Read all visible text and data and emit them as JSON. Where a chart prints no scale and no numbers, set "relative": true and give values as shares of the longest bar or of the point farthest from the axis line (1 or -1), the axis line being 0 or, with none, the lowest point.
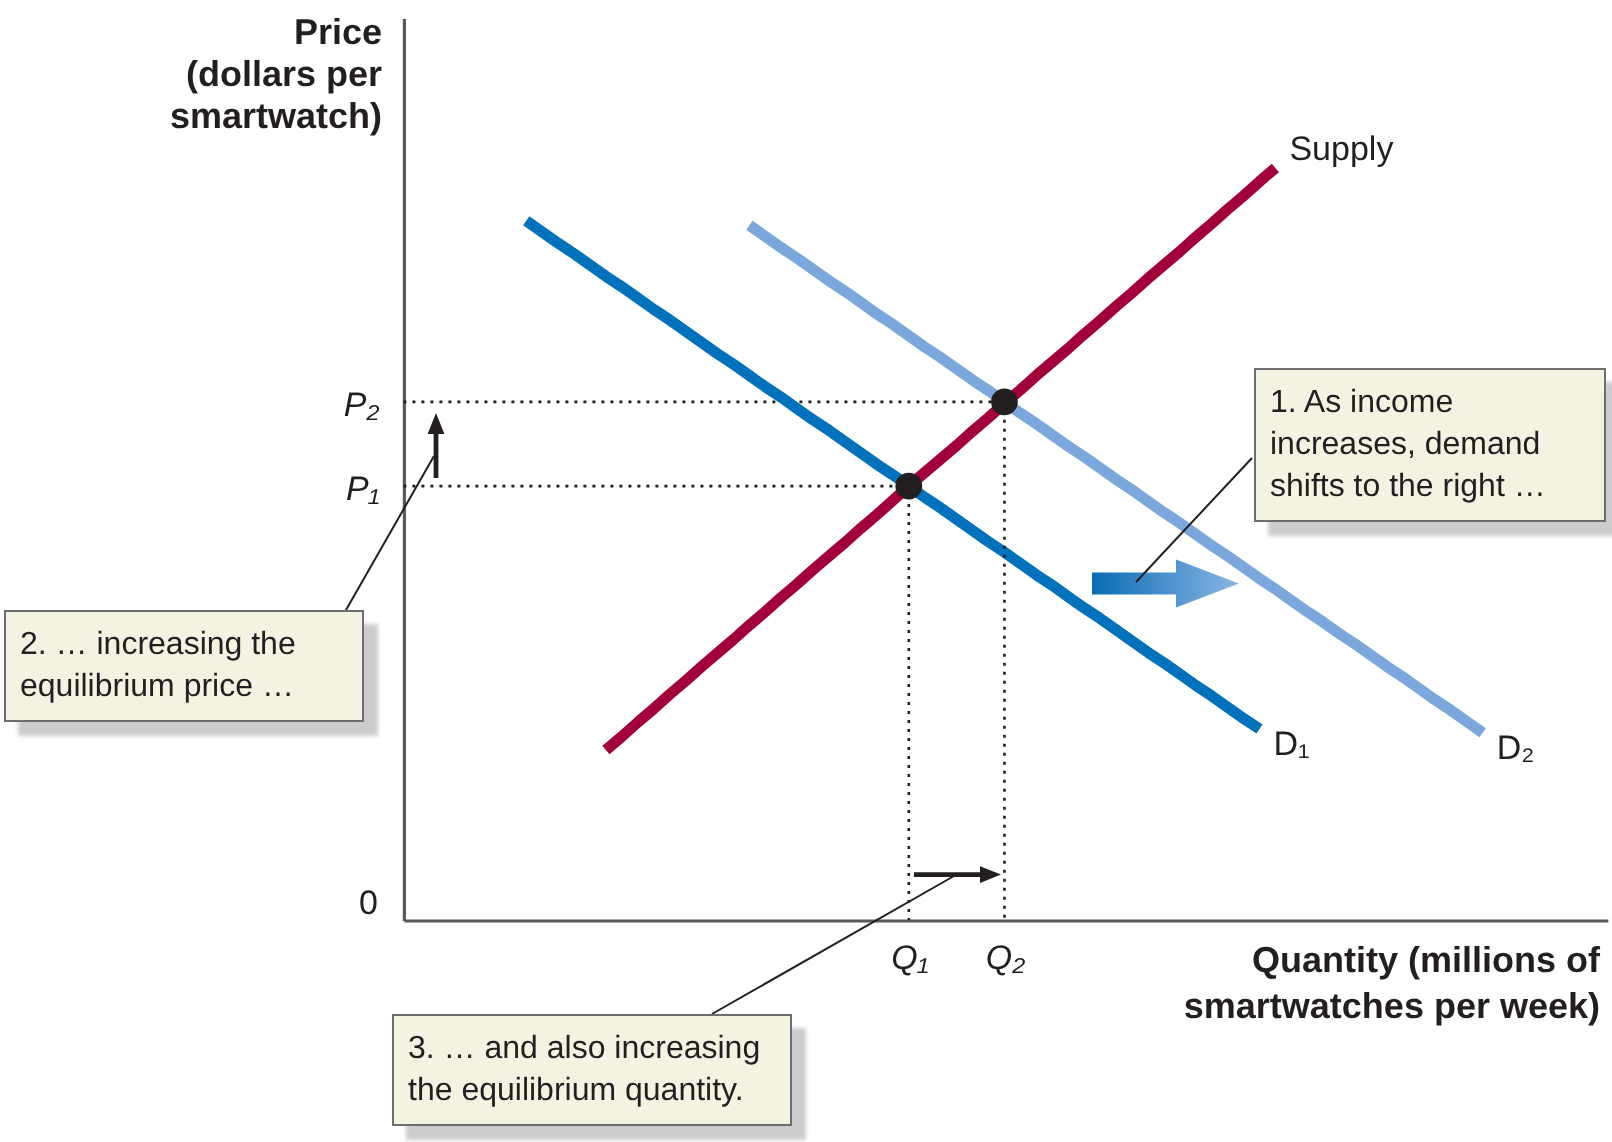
{
  "chart_data": {
    "type": "line",
    "relative": true,
    "ylabel": "Price (dollars per smartwatch)",
    "xlabel": "Quantity (millions of smartwatches per week)",
    "categories": [
      null,
      null,
      null,
      null,
      null,
      null,
      null,
      null,
      null,
      null,
      null,
      null,
      null,
      null,
      null,
      null,
      null,
      null,
      null,
      null,
      null,
      null,
      null,
      null,
      "Q₁",
      null,
      null,
      null,
      null,
      null,
      "Q₂",
      null,
      null,
      null,
      null,
      null,
      null,
      null,
      null,
      null,
      null,
      null,
      null,
      null,
      null,
      null,
      null,
      null,
      null,
      null,
      null,
      null,
      null,
      null,
      null,
      null,
      null,
      null,
      null,
      null,
      null
    ],
    "series": [
      {
        "name": "Supply",
        "color": "#a3003b",
        "values": [
          null,
          null,
          null,
          null,
          null,
          0.226,
          0.244,
          0.263,
          0.281,
          0.3,
          0.318,
          0.337,
          0.355,
          0.373,
          0.392,
          0.41,
          0.429,
          0.447,
          0.466,
          0.484,
          0.502,
          0.521,
          0.539,
          0.558,
          0.577,
          0.595,
          0.613,
          0.631,
          0.65,
          0.668,
          0.687,
          0.705,
          0.724,
          0.742,
          0.76,
          0.779,
          0.797,
          0.816,
          0.834,
          0.853,
          0.871,
          0.889,
          0.908,
          0.926,
          0.945,
          0.963,
          0.982,
          1,
          null,
          null,
          null,
          null,
          null,
          null,
          null,
          null,
          null,
          null,
          null,
          null,
          null
        ]
      },
      {
        "name": "D₁",
        "color": "#0071bb",
        "values": [
          0.93,
          0.915,
          0.9,
          0.886,
          0.871,
          0.856,
          0.842,
          0.827,
          0.812,
          0.798,
          0.783,
          0.768,
          0.753,
          0.739,
          0.724,
          0.709,
          0.695,
          0.68,
          0.665,
          0.651,
          0.636,
          0.621,
          0.606,
          0.592,
          0.577,
          0.562,
          0.548,
          0.533,
          0.518,
          0.503,
          0.489,
          0.474,
          0.459,
          0.445,
          0.43,
          0.415,
          0.401,
          0.386,
          0.371,
          0.356,
          0.342,
          0.327,
          0.312,
          0.298,
          0.283,
          0.268,
          0.254,
          null,
          null,
          null,
          null,
          null,
          null,
          null,
          null,
          null,
          null,
          null,
          null,
          null,
          null
        ]
      },
      {
        "name": "D₂",
        "color": "#7ba8dc",
        "values": [
          null,
          null,
          null,
          null,
          null,
          null,
          null,
          null,
          null,
          null,
          null,
          null,
          null,
          null,
          0.924,
          0.909,
          0.894,
          0.88,
          0.865,
          0.85,
          0.836,
          0.821,
          0.806,
          0.792,
          0.777,
          0.762,
          0.748,
          0.733,
          0.718,
          0.704,
          0.689,
          0.674,
          0.66,
          0.645,
          0.63,
          0.616,
          0.601,
          0.586,
          0.572,
          0.557,
          0.542,
          0.528,
          0.513,
          0.498,
          0.484,
          0.469,
          0.454,
          0.44,
          0.425,
          0.41,
          0.396,
          0.381,
          0.367,
          0.352,
          0.337,
          0.323,
          0.308,
          0.293,
          0.279,
          0.264,
          0.249
        ]
      },
      {
        "type": "lollipop",
        "marker": "circle",
        "line_style": "dotted",
        "color": "#231f20",
        "values": [
          null,
          null,
          null,
          null,
          null,
          null,
          null,
          null,
          null,
          null,
          null,
          null,
          null,
          null,
          null,
          null,
          null,
          null,
          null,
          null,
          null,
          null,
          null,
          null,
          0.577,
          null,
          null,
          null,
          null,
          null,
          0.689,
          null,
          null,
          null,
          null,
          null,
          null,
          null,
          null,
          null,
          null,
          null,
          null,
          null,
          null,
          null,
          null,
          null,
          null,
          null,
          null,
          null,
          null,
          null,
          null,
          null,
          null,
          null,
          null,
          null,
          null
        ]
      }
    ],
    "ref_lines": [
      {
        "axis": "y",
        "value": 0.577,
        "label": "P₁",
        "color": "#231f20",
        "line_style": "dotted"
      },
      {
        "axis": "y",
        "value": 0.689,
        "label": "P₂",
        "color": "#231f20",
        "line_style": "dotted"
      }
    ],
    "annotations": [
      "1. As income increases, demand shifts to the right …",
      "2. … increasing the equilibrium price …",
      "3. … and also increasing the equilibrium quantity.",
      "0"
    ]
  }
}
